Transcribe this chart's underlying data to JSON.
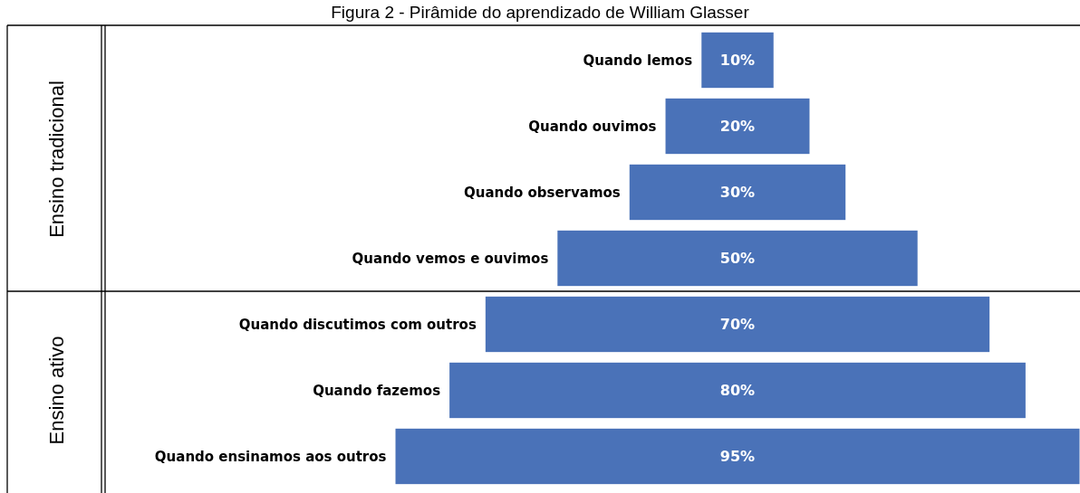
{
  "chart_data": {
    "type": "other",
    "title": "Figura 2 - Pirâmide do aprendizado de William Glasser",
    "categories": [
      "Quando lemos",
      "Quando ouvimos",
      "Quando observamos",
      "Quando vemos e ouvimos",
      "Quando discutimos com outros",
      "Quando fazemos",
      "Quando ensinamos aos outros"
    ],
    "values": [
      10,
      20,
      30,
      50,
      70,
      80,
      95
    ],
    "color": "#4a72b8",
    "value_labels": [
      "10%",
      "20%",
      "30%",
      "50%",
      "70%",
      "80%",
      "95%"
    ],
    "annotations": [
      "Ensino tradicional",
      "Ensino ativo"
    ]
  }
}
